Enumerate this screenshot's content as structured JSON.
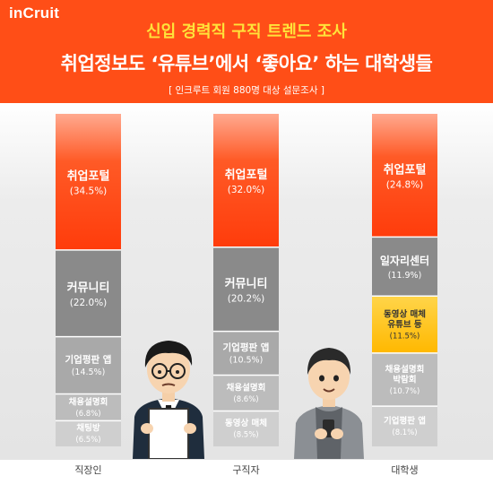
{
  "header": {
    "logo": "인크루트",
    "logo_display": "inCruit",
    "title_line1": "신입 경력직 구직 트렌드 조사",
    "title_line2": "취업정보도 ‘유튜브’에서 ‘좋아요’ 하는 대학생들",
    "survey_note": "[ 인크루트 회원 880명 대상 설문조사 ]"
  },
  "colors": {
    "header_bg": "#ff4e17",
    "title_yellow": "#ffe33a",
    "portal_top": "#ff3c0b",
    "portal_bottom": "#ffa98f",
    "community": "#8a8a8a",
    "app": "#a9a9a9",
    "fair": "#bcbcbc",
    "other": "#cfcfcf",
    "youtube": "#ffc51a"
  },
  "chart_data": {
    "type": "bar",
    "stacked": true,
    "categories": [
      "직장인",
      "구직자",
      "대학생"
    ],
    "series_by_category": [
      [
        {
          "name": "취업포털",
          "label": "(34.5%)",
          "value": 34.5,
          "style": "portal"
        },
        {
          "name": "커뮤니티",
          "label": "(22.0%)",
          "value": 22.0,
          "style": "community"
        },
        {
          "name": "기업평판 앱",
          "label": "(14.5%)",
          "value": 14.5,
          "style": "app"
        },
        {
          "name": "채용설명회",
          "label": "(6.8%)",
          "value": 6.8,
          "style": "fair"
        },
        {
          "name": "채팅방",
          "label": "(6.5%)",
          "value": 6.5,
          "style": "other"
        }
      ],
      [
        {
          "name": "취업포털",
          "label": "(32.0%)",
          "value": 32.0,
          "style": "portal"
        },
        {
          "name": "커뮤니티",
          "label": "(20.2%)",
          "value": 20.2,
          "style": "community"
        },
        {
          "name": "기업평판 앱",
          "label": "(10.5%)",
          "value": 10.5,
          "style": "app"
        },
        {
          "name": "채용설명회",
          "label": "(8.6%)",
          "value": 8.6,
          "style": "fair"
        },
        {
          "name": "동영상 매체",
          "label": "(8.5%)",
          "value": 8.5,
          "style": "other"
        }
      ],
      [
        {
          "name": "취업포털",
          "label": "(24.8%)",
          "value": 24.8,
          "style": "portal"
        },
        {
          "name": "일자리센터",
          "label": "(11.9%)",
          "value": 11.9,
          "style": "community"
        },
        {
          "name": "동영상 매체\n유튜브 등",
          "label": "(11.5%)",
          "value": 11.5,
          "style": "youtube"
        },
        {
          "name": "채용설명회\n박람회",
          "label": "(10.7%)",
          "value": 10.7,
          "style": "fair"
        },
        {
          "name": "기업평판 앱",
          "label": "(8.1%)",
          "value": 8.1,
          "style": "other"
        }
      ]
    ],
    "title": "신입 경력직 구직 트렌드 조사",
    "xlabel": "",
    "ylabel": ""
  }
}
